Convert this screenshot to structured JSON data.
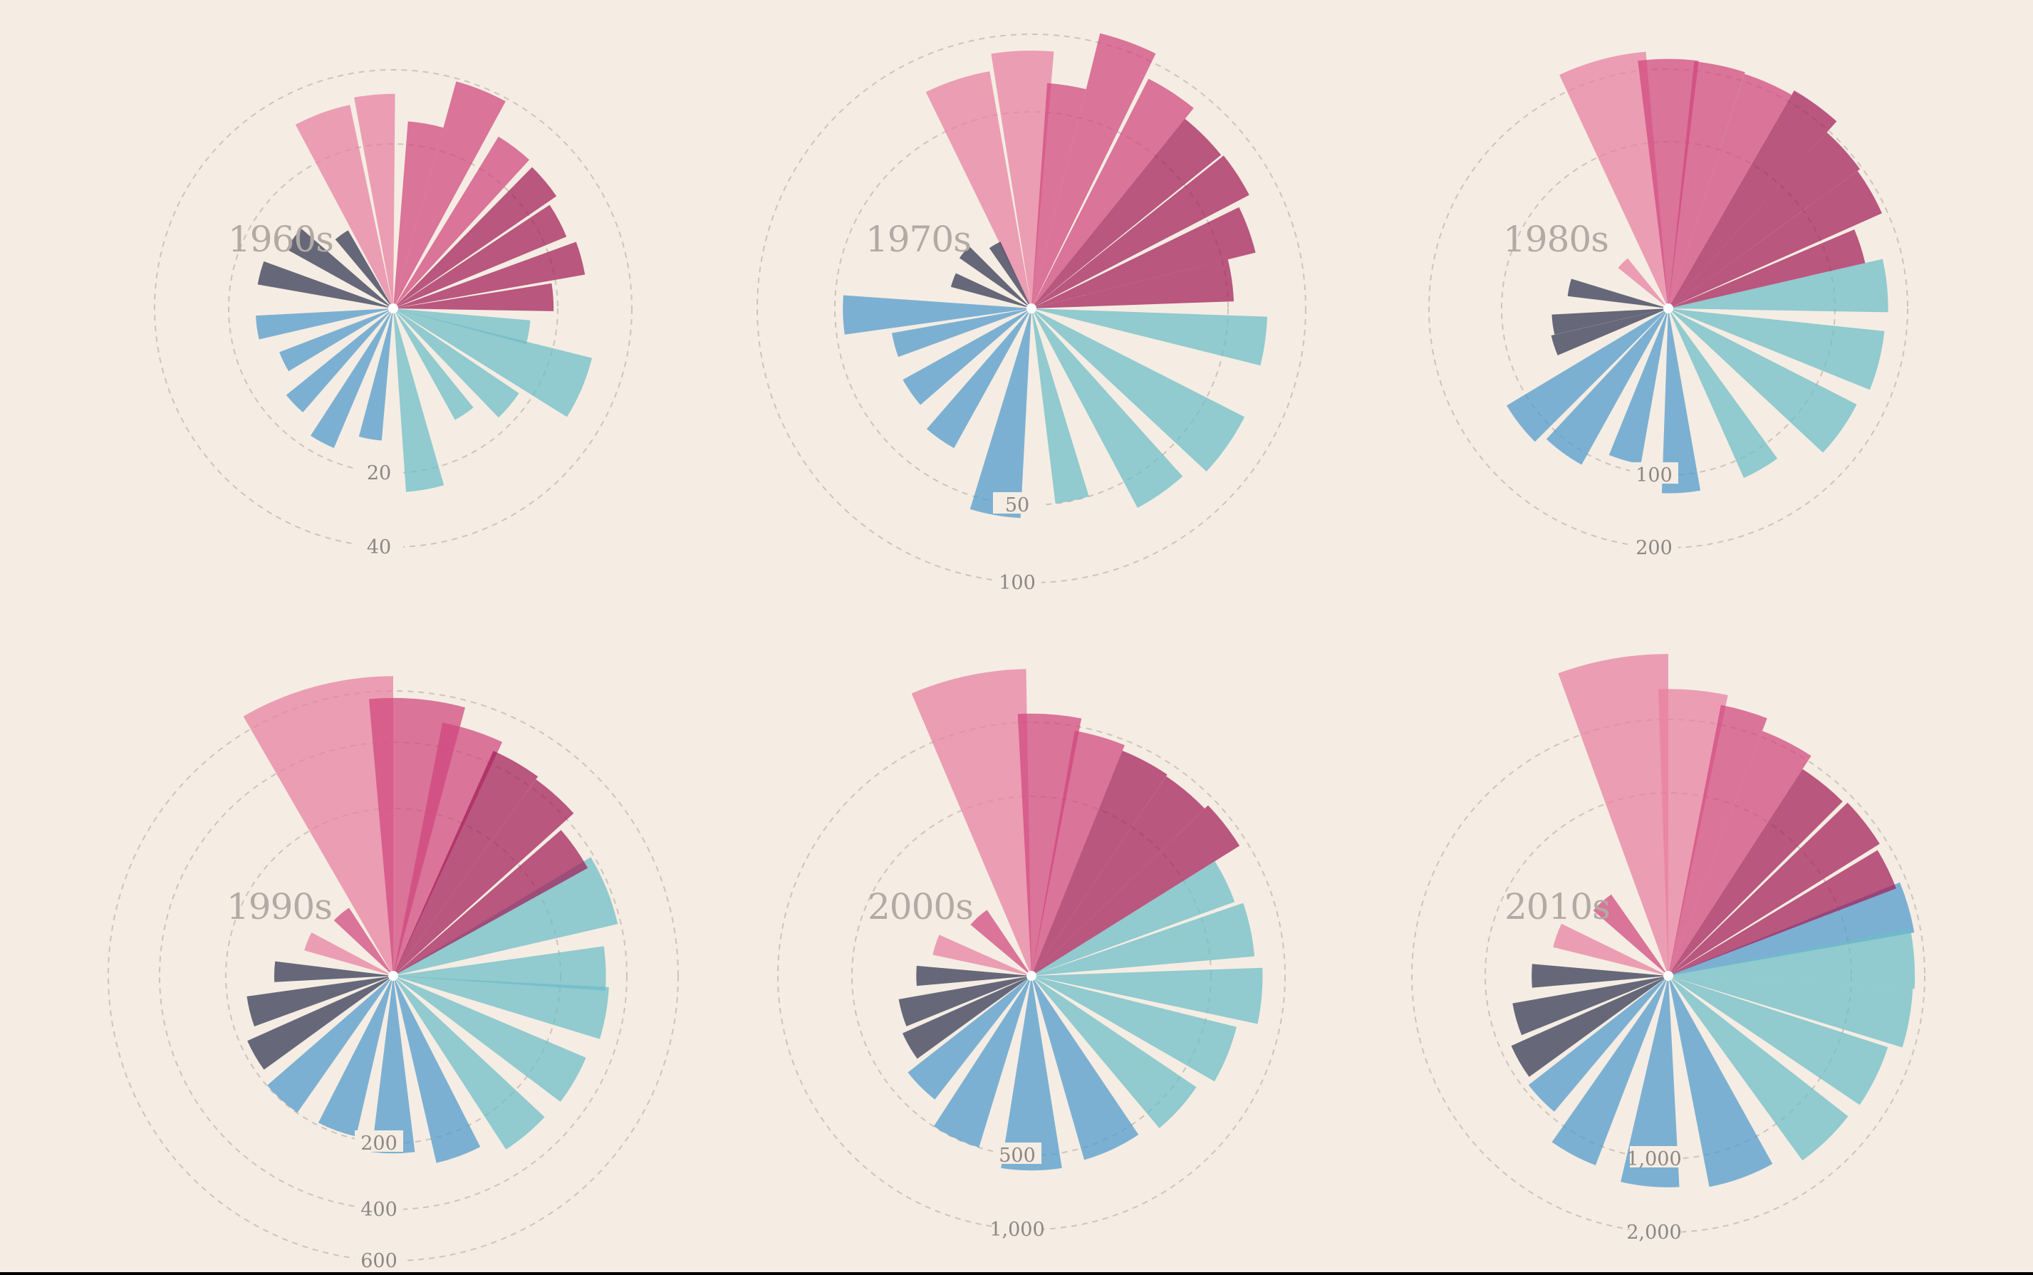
{
  "colors": {
    "background": "#f5ede3",
    "pink_light": "#e87ea1",
    "pink_mid": "#d0457d",
    "pink_dark": "#a21d58",
    "teal": "#6bbcc8",
    "blue": "#4d98cc",
    "navy": "#2f3550",
    "ring": "#cdc4bc",
    "label": "#8e8681"
  },
  "chart_data": [
    {
      "type": "polar-bar",
      "title": "1960s",
      "ring_values": [
        20,
        40
      ],
      "ring_labels": [
        "20",
        "40"
      ],
      "wedges": [
        {
          "angle": -20,
          "width": 16,
          "value": 32,
          "color": "pink_light"
        },
        {
          "angle": -5,
          "width": 11,
          "value": 34,
          "color": "pink_light"
        },
        {
          "angle": 10,
          "width": 11,
          "value": 26,
          "color": "pink_mid"
        },
        {
          "angle": 22,
          "width": 13,
          "value": 41,
          "color": "pink_mid"
        },
        {
          "angle": 37,
          "width": 11,
          "value": 30,
          "color": "pink_mid"
        },
        {
          "angle": 50,
          "width": 11,
          "value": 29,
          "color": "pink_dark"
        },
        {
          "angle": 62,
          "width": 11,
          "value": 26,
          "color": "pink_dark"
        },
        {
          "angle": 75,
          "width": 10,
          "value": 28,
          "color": "pink_dark"
        },
        {
          "angle": 86,
          "width": 10,
          "value": 19,
          "color": "pink_dark"
        },
        {
          "angle": 100,
          "width": 10,
          "value": 14,
          "color": "teal"
        },
        {
          "angle": 113,
          "width": 18,
          "value": 31,
          "color": "teal"
        },
        {
          "angle": 130,
          "width": 12,
          "value": 17,
          "color": "teal"
        },
        {
          "angle": 146,
          "width": 10,
          "value": 12,
          "color": "teal"
        },
        {
          "angle": 170,
          "width": 12,
          "value": 25,
          "color": "teal"
        },
        {
          "angle": 190,
          "width": 10,
          "value": 13,
          "color": "blue"
        },
        {
          "angle": 208,
          "width": 10,
          "value": 17,
          "color": "blue"
        },
        {
          "angle": 226,
          "width": 10,
          "value": 14,
          "color": "blue"
        },
        {
          "angle": 244,
          "width": 10,
          "value": 11,
          "color": "blue"
        },
        {
          "angle": 262,
          "width": 10,
          "value": 14,
          "color": "blue"
        },
        {
          "angle": 285,
          "width": 10,
          "value": 14,
          "color": "navy"
        },
        {
          "angle": 305,
          "width": 12,
          "value": 11,
          "color": "navy"
        },
        {
          "angle": 325,
          "width": 10,
          "value": 6,
          "color": "navy"
        }
      ]
    },
    {
      "type": "polar-bar",
      "title": "1970s",
      "ring_values": [
        50,
        100
      ],
      "ring_labels": [
        "50",
        "100"
      ],
      "wedges": [
        {
          "angle": -18,
          "width": 16,
          "value": 75,
          "color": "pink_light"
        },
        {
          "angle": -2,
          "width": 14,
          "value": 86,
          "color": "pink_light"
        },
        {
          "angle": 9,
          "width": 10,
          "value": 66,
          "color": "pink_mid"
        },
        {
          "angle": 20,
          "width": 12,
          "value": 104,
          "color": "pink_mid"
        },
        {
          "angle": 33,
          "width": 12,
          "value": 86,
          "color": "pink_mid"
        },
        {
          "angle": 45,
          "width": 12,
          "value": 77,
          "color": "pink_dark"
        },
        {
          "angle": 57,
          "width": 11,
          "value": 78,
          "color": "pink_dark"
        },
        {
          "angle": 70,
          "width": 12,
          "value": 69,
          "color": "pink_dark"
        },
        {
          "angle": 82,
          "width": 12,
          "value": 53,
          "color": "pink_dark"
        },
        {
          "angle": 98,
          "width": 12,
          "value": 72,
          "color": "teal"
        },
        {
          "angle": 125,
          "width": 16,
          "value": 74,
          "color": "teal"
        },
        {
          "angle": 145,
          "width": 14,
          "value": 66,
          "color": "teal"
        },
        {
          "angle": 168,
          "width": 10,
          "value": 50,
          "color": "teal"
        },
        {
          "angle": 190,
          "width": 14,
          "value": 57,
          "color": "blue"
        },
        {
          "angle": 215,
          "width": 12,
          "value": 33,
          "color": "blue"
        },
        {
          "angle": 235,
          "width": 12,
          "value": 28,
          "color": "blue"
        },
        {
          "angle": 255,
          "width": 10,
          "value": 26,
          "color": "blue"
        },
        {
          "angle": 268,
          "width": 12,
          "value": 46,
          "color": "blue"
        },
        {
          "angle": 290,
          "width": 10,
          "value": 9,
          "color": "navy"
        },
        {
          "angle": 310,
          "width": 10,
          "value": 10,
          "color": "navy"
        },
        {
          "angle": 330,
          "width": 10,
          "value": 7,
          "color": "navy"
        }
      ]
    },
    {
      "type": "polar-bar",
      "title": "1980s",
      "ring_values": [
        100,
        200
      ],
      "ring_labels": [
        "100",
        "200"
      ],
      "wedges": [
        {
          "angle": -15,
          "width": 20,
          "value": 239,
          "color": "pink_light"
        },
        {
          "angle": 0,
          "width": 14,
          "value": 224,
          "color": "pink_mid"
        },
        {
          "angle": 12,
          "width": 12,
          "value": 222,
          "color": "pink_mid"
        },
        {
          "angle": 24,
          "width": 12,
          "value": 219,
          "color": "pink_mid"
        },
        {
          "angle": 36,
          "width": 12,
          "value": 228,
          "color": "pink_dark"
        },
        {
          "angle": 48,
          "width": 12,
          "value": 202,
          "color": "pink_dark"
        },
        {
          "angle": 60,
          "width": 12,
          "value": 197,
          "color": "pink_dark"
        },
        {
          "angle": 72,
          "width": 10,
          "value": 147,
          "color": "pink_dark"
        },
        {
          "angle": 84,
          "width": 14,
          "value": 174,
          "color": "teal"
        },
        {
          "angle": 104,
          "width": 16,
          "value": 170,
          "color": "teal"
        },
        {
          "angle": 125,
          "width": 16,
          "value": 161,
          "color": "teal"
        },
        {
          "angle": 150,
          "width": 12,
          "value": 124,
          "color": "teal"
        },
        {
          "angle": 176,
          "width": 12,
          "value": 123,
          "color": "blue"
        },
        {
          "angle": 196,
          "width": 12,
          "value": 90,
          "color": "blue"
        },
        {
          "angle": 216,
          "width": 14,
          "value": 115,
          "color": "blue"
        },
        {
          "angle": 232,
          "width": 14,
          "value": 128,
          "color": "blue"
        },
        {
          "angle": 252,
          "width": 10,
          "value": 52,
          "color": "navy"
        },
        {
          "angle": 262,
          "width": 10,
          "value": 49,
          "color": "navy"
        },
        {
          "angle": 282,
          "width": 10,
          "value": 37,
          "color": "navy"
        },
        {
          "angle": 315,
          "width": 12,
          "value": 15,
          "color": "pink_light"
        }
      ]
    },
    {
      "type": "polar-bar",
      "title": "1990s",
      "ring_values": [
        200,
        400,
        600
      ],
      "ring_labels": [
        "200",
        "400",
        "600"
      ],
      "wedges": [
        {
          "angle": -15,
          "width": 30,
          "value": 641,
          "color": "pink_light"
        },
        {
          "angle": 5,
          "width": 20,
          "value": 551,
          "color": "pink_mid"
        },
        {
          "angle": 18,
          "width": 14,
          "value": 475,
          "color": "pink_mid"
        },
        {
          "angle": 30,
          "width": 12,
          "value": 433,
          "color": "pink_dark"
        },
        {
          "angle": 42,
          "width": 12,
          "value": 421,
          "color": "pink_dark"
        },
        {
          "angle": 55,
          "width": 12,
          "value": 353,
          "color": "pink_dark"
        },
        {
          "angle": 68,
          "width": 18,
          "value": 379,
          "color": "teal"
        },
        {
          "angle": 88,
          "width": 12,
          "value": 323,
          "color": "teal"
        },
        {
          "angle": 100,
          "width": 14,
          "value": 333,
          "color": "teal"
        },
        {
          "angle": 120,
          "width": 14,
          "value": 313,
          "color": "teal"
        },
        {
          "angle": 140,
          "width": 14,
          "value": 306,
          "color": "teal"
        },
        {
          "angle": 160,
          "width": 14,
          "value": 263,
          "color": "blue"
        },
        {
          "angle": 180,
          "width": 14,
          "value": 225,
          "color": "blue"
        },
        {
          "angle": 200,
          "width": 14,
          "value": 194,
          "color": "blue"
        },
        {
          "angle": 222,
          "width": 14,
          "value": 199,
          "color": "blue"
        },
        {
          "angle": 240,
          "width": 12,
          "value": 182,
          "color": "navy"
        },
        {
          "angle": 256,
          "width": 12,
          "value": 156,
          "color": "navy"
        },
        {
          "angle": 272,
          "width": 10,
          "value": 101,
          "color": "navy"
        },
        {
          "angle": 292,
          "width": 12,
          "value": 61,
          "color": "pink_light"
        },
        {
          "angle": 320,
          "width": 14,
          "value": 47,
          "color": "pink_mid"
        }
      ]
    },
    {
      "type": "polar-bar",
      "title": "2000s",
      "ring_values": [
        500,
        1000
      ],
      "ring_labels": [
        "500",
        "1,000"
      ],
      "wedges": [
        {
          "angle": -12,
          "width": 22,
          "value": 1461,
          "color": "pink_light"
        },
        {
          "angle": 4,
          "width": 14,
          "value": 1067,
          "color": "pink_mid"
        },
        {
          "angle": 16,
          "width": 12,
          "value": 961,
          "color": "pink_mid"
        },
        {
          "angle": 28,
          "width": 12,
          "value": 915,
          "color": "pink_dark"
        },
        {
          "angle": 40,
          "width": 12,
          "value": 900,
          "color": "pink_dark"
        },
        {
          "angle": 52,
          "width": 12,
          "value": 935,
          "color": "pink_dark"
        },
        {
          "angle": 64,
          "width": 12,
          "value": 726,
          "color": "teal"
        },
        {
          "angle": 78,
          "width": 14,
          "value": 778,
          "color": "teal"
        },
        {
          "angle": 95,
          "width": 14,
          "value": 829,
          "color": "teal"
        },
        {
          "angle": 112,
          "width": 16,
          "value": 693,
          "color": "teal"
        },
        {
          "angle": 132,
          "width": 16,
          "value": 614,
          "color": "teal"
        },
        {
          "angle": 155,
          "width": 18,
          "value": 569,
          "color": "blue"
        },
        {
          "angle": 180,
          "width": 18,
          "value": 588,
          "color": "blue"
        },
        {
          "angle": 205,
          "width": 16,
          "value": 500,
          "color": "blue"
        },
        {
          "angle": 225,
          "width": 14,
          "value": 382,
          "color": "blue"
        },
        {
          "angle": 240,
          "width": 12,
          "value": 309,
          "color": "navy"
        },
        {
          "angle": 254,
          "width": 12,
          "value": 282,
          "color": "navy"
        },
        {
          "angle": 270,
          "width": 10,
          "value": 206,
          "color": "navy"
        },
        {
          "angle": 288,
          "width": 12,
          "value": 158,
          "color": "pink_light"
        },
        {
          "angle": 318,
          "width": 16,
          "value": 98,
          "color": "pink_mid"
        }
      ]
    },
    {
      "type": "polar-bar",
      "title": "2010s",
      "ring_values": [
        1000,
        2000
      ],
      "ring_labels": [
        "1,000",
        "2,000"
      ],
      "wedges": [
        {
          "angle": -10,
          "width": 20,
          "value": 3092,
          "color": "pink_light"
        },
        {
          "angle": 5,
          "width": 14,
          "value": 2456,
          "color": "pink_light"
        },
        {
          "angle": 16,
          "width": 10,
          "value": 2271,
          "color": "pink_mid"
        },
        {
          "angle": 27,
          "width": 12,
          "value": 2054,
          "color": "pink_mid"
        },
        {
          "angle": 39,
          "width": 12,
          "value": 1814,
          "color": "pink_dark"
        },
        {
          "angle": 52,
          "width": 12,
          "value": 1854,
          "color": "pink_dark"
        },
        {
          "angle": 64,
          "width": 10,
          "value": 1779,
          "color": "pink_dark"
        },
        {
          "angle": 74,
          "width": 12,
          "value": 1861,
          "color": "blue"
        },
        {
          "angle": 86,
          "width": 14,
          "value": 1814,
          "color": "teal"
        },
        {
          "angle": 100,
          "width": 14,
          "value": 1788,
          "color": "teal"
        },
        {
          "angle": 116,
          "width": 16,
          "value": 1591,
          "color": "teal"
        },
        {
          "angle": 136,
          "width": 16,
          "value": 1554,
          "color": "teal"
        },
        {
          "angle": 160,
          "width": 18,
          "value": 1379,
          "color": "blue"
        },
        {
          "angle": 185,
          "width": 16,
          "value": 1335,
          "color": "blue"
        },
        {
          "angle": 208,
          "width": 14,
          "value": 1229,
          "color": "blue"
        },
        {
          "angle": 226,
          "width": 12,
          "value": 939,
          "color": "blue"
        },
        {
          "angle": 240,
          "width": 12,
          "value": 882,
          "color": "navy"
        },
        {
          "angle": 254,
          "width": 12,
          "value": 747,
          "color": "navy"
        },
        {
          "angle": 270,
          "width": 10,
          "value": 557,
          "color": "navy"
        },
        {
          "angle": 290,
          "width": 12,
          "value": 421,
          "color": "pink_light"
        },
        {
          "angle": 318,
          "width": 14,
          "value": 295,
          "color": "pink_mid"
        }
      ]
    }
  ]
}
